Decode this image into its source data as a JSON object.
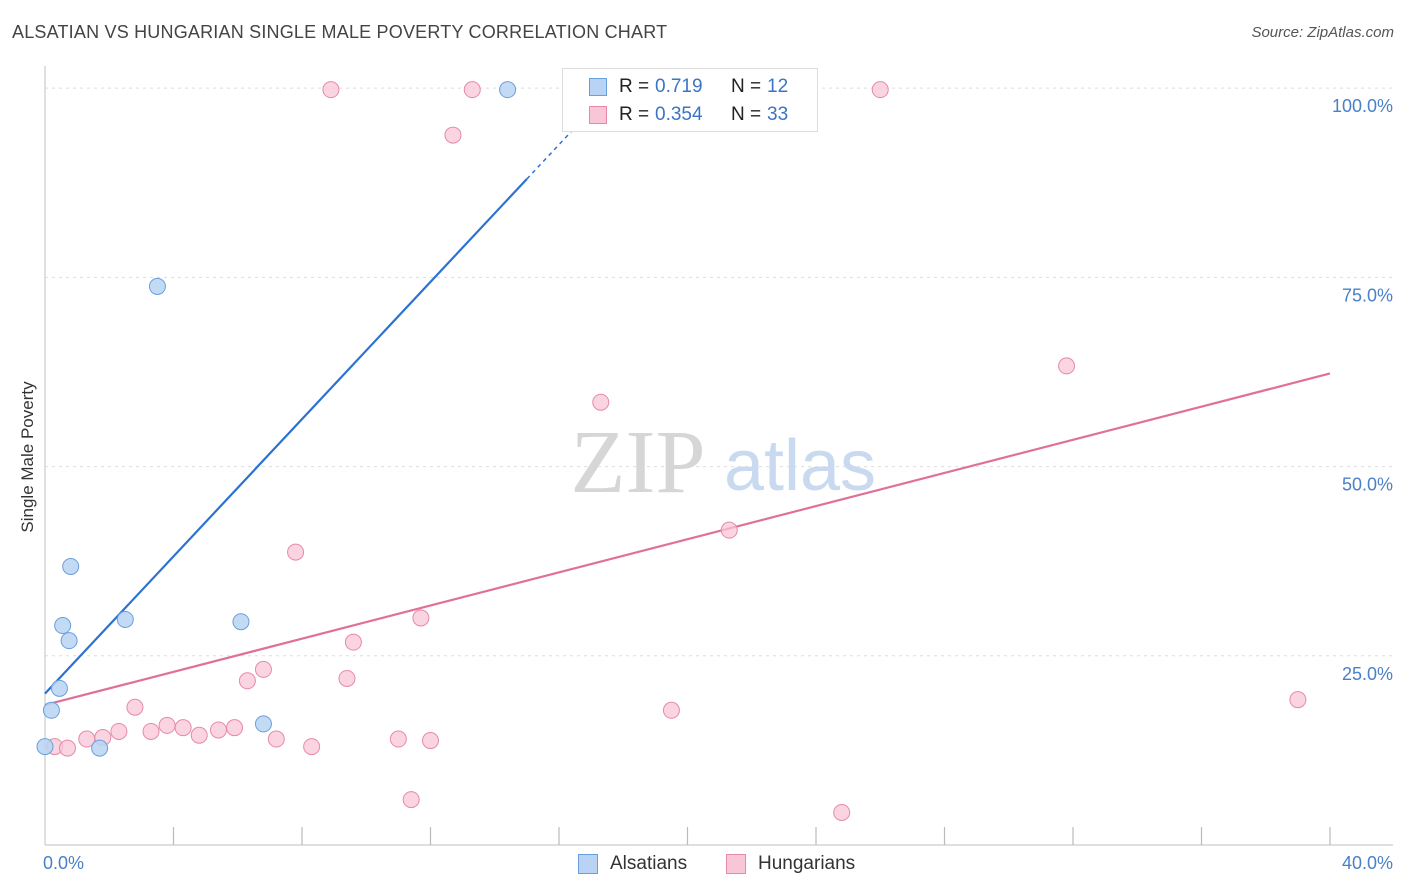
{
  "title": "ALSATIAN VS HUNGARIAN SINGLE MALE POVERTY CORRELATION CHART",
  "source": "Source: ZipAtlas.com",
  "watermark": {
    "zip": "ZIP",
    "atlas": "atlas"
  },
  "colors": {
    "alsatian_fill": "#b8d3f3",
    "alsatian_stroke": "#6a9fdd",
    "alsatian_line": "#2b72d2",
    "hungarian_fill": "#f8c6d6",
    "hungarian_stroke": "#e68aa8",
    "hungarian_line": "#e0709a",
    "tick_text": "#4a80c8",
    "grid": "#dddddd"
  },
  "legend": {
    "rows": [
      {
        "r_label": "R =",
        "r_value": "0.719",
        "n_label": "N =",
        "n_value": "12"
      },
      {
        "r_label": "R =",
        "r_value": "0.354",
        "n_label": "N =",
        "n_value": "33"
      }
    ]
  },
  "chart_data": {
    "type": "scatter",
    "title": "ALSATIAN VS HUNGARIAN SINGLE MALE POVERTY CORRELATION CHART",
    "xlabel": "",
    "ylabel": "Single Male Poverty",
    "xlim": [
      0,
      40
    ],
    "ylim": [
      0,
      102
    ],
    "x_tick_labels": [
      "0.0%",
      "40.0%"
    ],
    "y_ticks": [
      25,
      50,
      75,
      100
    ],
    "y_tick_labels": [
      "25.0%",
      "50.0%",
      "75.0%",
      "100.0%"
    ],
    "grid": true,
    "legend_position": "bottom",
    "series": [
      {
        "name": "Alsatians",
        "r": 0.719,
        "n": 12,
        "points": [
          {
            "x": 0.0,
            "y": 13.0
          },
          {
            "x": 0.2,
            "y": 17.8
          },
          {
            "x": 0.45,
            "y": 20.7
          },
          {
            "x": 0.55,
            "y": 29.0
          },
          {
            "x": 0.75,
            "y": 27.0
          },
          {
            "x": 0.8,
            "y": 36.8
          },
          {
            "x": 1.7,
            "y": 12.8
          },
          {
            "x": 2.5,
            "y": 29.8
          },
          {
            "x": 3.5,
            "y": 73.8
          },
          {
            "x": 6.1,
            "y": 29.5
          },
          {
            "x": 6.8,
            "y": 16.0
          },
          {
            "x": 14.4,
            "y": 99.8
          }
        ],
        "trend": {
          "x0": 0.0,
          "y0": 20.0,
          "x1": 15.0,
          "y1": 88.0,
          "x_dash_end": 18.0,
          "y_dash_end": 101.6
        }
      },
      {
        "name": "Hungarians",
        "r": 0.354,
        "n": 33,
        "points": [
          {
            "x": 0.3,
            "y": 13.0
          },
          {
            "x": 0.7,
            "y": 12.8
          },
          {
            "x": 1.3,
            "y": 14.0
          },
          {
            "x": 1.8,
            "y": 14.2
          },
          {
            "x": 2.3,
            "y": 15.0
          },
          {
            "x": 2.8,
            "y": 18.2
          },
          {
            "x": 3.3,
            "y": 15.0
          },
          {
            "x": 3.8,
            "y": 15.8
          },
          {
            "x": 4.3,
            "y": 15.5
          },
          {
            "x": 4.8,
            "y": 14.5
          },
          {
            "x": 5.4,
            "y": 15.2
          },
          {
            "x": 5.9,
            "y": 15.5
          },
          {
            "x": 6.3,
            "y": 21.7
          },
          {
            "x": 6.8,
            "y": 23.2
          },
          {
            "x": 7.2,
            "y": 14.0
          },
          {
            "x": 7.8,
            "y": 38.7
          },
          {
            "x": 8.3,
            "y": 13.0
          },
          {
            "x": 8.9,
            "y": 99.8
          },
          {
            "x": 9.4,
            "y": 22.0
          },
          {
            "x": 9.6,
            "y": 26.8
          },
          {
            "x": 11.0,
            "y": 14.0
          },
          {
            "x": 11.4,
            "y": 6.0
          },
          {
            "x": 11.7,
            "y": 30.0
          },
          {
            "x": 12.0,
            "y": 13.8
          },
          {
            "x": 12.7,
            "y": 93.8
          },
          {
            "x": 13.3,
            "y": 99.8
          },
          {
            "x": 17.3,
            "y": 58.5
          },
          {
            "x": 19.5,
            "y": 17.8
          },
          {
            "x": 21.3,
            "y": 41.6
          },
          {
            "x": 24.8,
            "y": 4.3
          },
          {
            "x": 26.0,
            "y": 99.8
          },
          {
            "x": 31.8,
            "y": 63.3
          },
          {
            "x": 39.0,
            "y": 19.2
          }
        ],
        "trend": {
          "x0": 0.0,
          "y0": 18.5,
          "x1": 40.0,
          "y1": 62.3
        }
      }
    ]
  }
}
